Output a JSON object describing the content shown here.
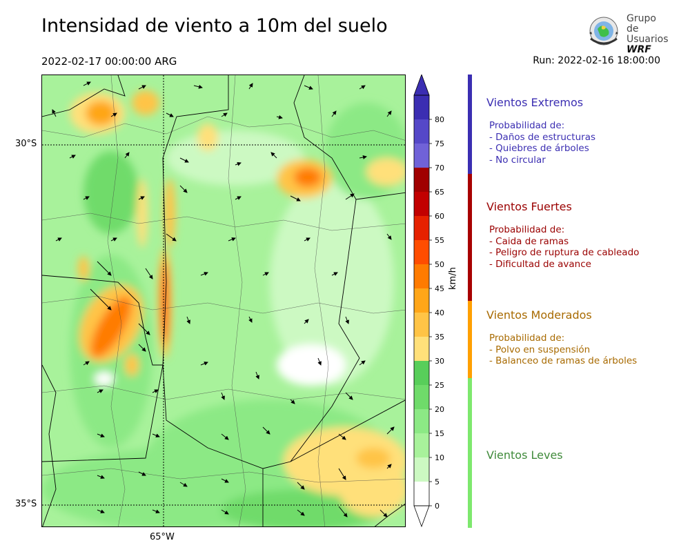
{
  "title": "Intensidad de viento a 10m del suelo",
  "valid_time": "2022-02-17 00:00:00 ARG",
  "run_time": "Run: 2022-02-16 18:00:00",
  "logo": {
    "line1": "Grupo de",
    "line2": "Usuarios",
    "line3": "WRF"
  },
  "map": {
    "lat_labels": [
      "30°S",
      "35°S"
    ],
    "lon_labels": [
      "65°W"
    ]
  },
  "colorbar": {
    "unit": "km/h",
    "ticks": [
      "0",
      "5",
      "10",
      "15",
      "20",
      "25",
      "30",
      "35",
      "40",
      "45",
      "50",
      "55",
      "60",
      "65",
      "70",
      "75",
      "80"
    ],
    "colors": [
      "#ffffff",
      "#ccf9c2",
      "#a8f29b",
      "#8ce985",
      "#6fdb6a",
      "#58ce5a",
      "#ffe07a",
      "#ffc446",
      "#ffa618",
      "#ff7b00",
      "#ff4d00",
      "#e62100",
      "#c20000",
      "#a00000",
      "#7062d8",
      "#5548c8",
      "#3b2eb2"
    ],
    "extend_color": "#3b2eb2"
  },
  "categories": [
    {
      "title": "Vientos Extremos",
      "color": "#3b2eb2",
      "desc_color": "#3b2eb2",
      "lines": [
        "Probabilidad de:",
        "- Daños de estructuras",
        "- Quiebres de árboles",
        "- No circular"
      ]
    },
    {
      "title": "Vientos Fuertes",
      "color": "#9a0000",
      "desc_color": "#9a0000",
      "lines": [
        "Probabilidad de:",
        "- Caida de ramas",
        "- Peligro de ruptura de cableado",
        "- Dificultad de avance"
      ]
    },
    {
      "title": "Vientos Moderados",
      "color": "#a86a00",
      "desc_color": "#a86a00",
      "lines": [
        "Probabilidad de:",
        "- Polvo en suspensión",
        "- Balanceo de ramas de árboles"
      ]
    },
    {
      "title": "Vientos Leves",
      "color": "#3f8a3a",
      "desc_color": "#3f8a3a",
      "lines": []
    }
  ],
  "legend_strip_colors": {
    "extreme": "#3b2eb2",
    "strong": "#a80000",
    "moderate": "#ffa000",
    "light": "#7ee86e"
  }
}
